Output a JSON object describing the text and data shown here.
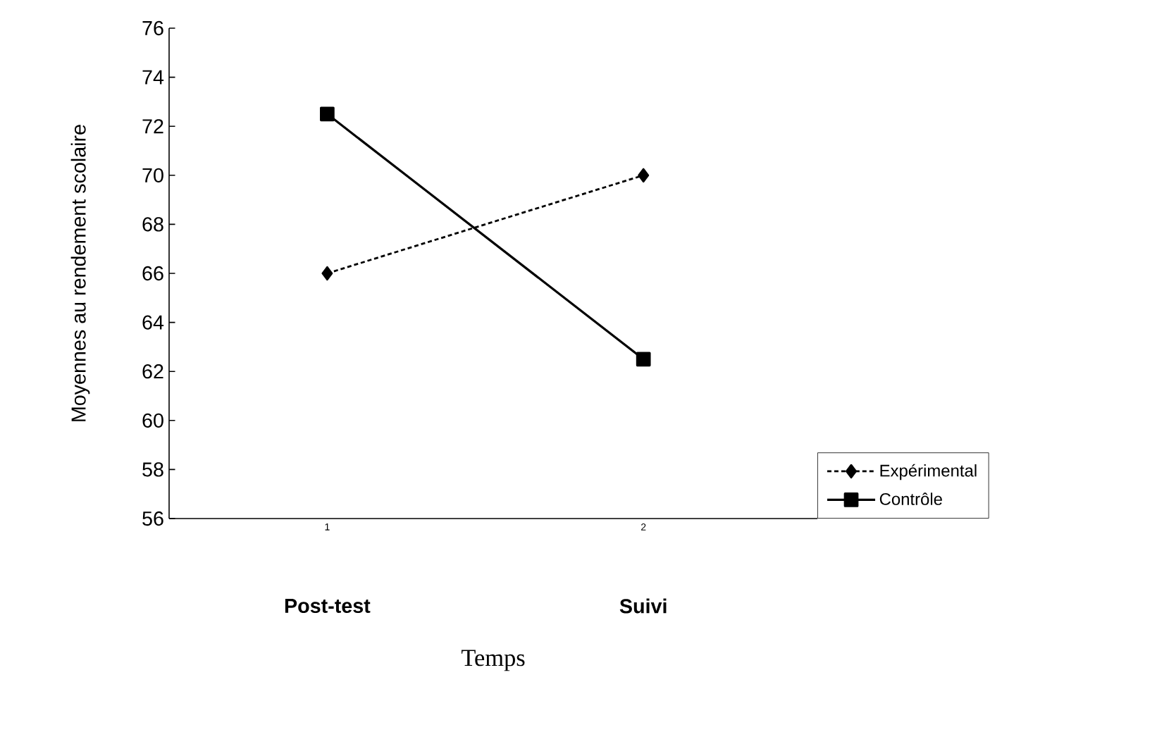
{
  "chart_data": {
    "type": "line",
    "xlabel": "Temps",
    "ylabel": "Moyennes au rendement scolaire",
    "categories": [
      "1",
      "2"
    ],
    "series": [
      {
        "name": "Expérimental",
        "color": "#000000",
        "values": [
          66,
          70
        ],
        "marker": "diamond",
        "line_style": "dotted"
      },
      {
        "name": "Contrôle",
        "color": "#000000",
        "values": [
          72.5,
          62.5
        ],
        "marker": "square",
        "line_style": "solid"
      }
    ],
    "annotations": [
      "Post-test",
      "Suivi"
    ],
    "ylim": [
      56,
      76
    ],
    "yticks": [
      56,
      58,
      60,
      62,
      64,
      66,
      68,
      70,
      72,
      74,
      76
    ],
    "grid": false,
    "legend": "bottom right"
  }
}
